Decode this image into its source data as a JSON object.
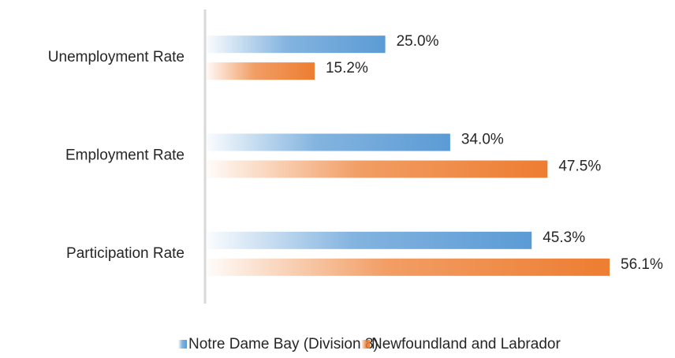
{
  "chart_data": {
    "type": "bar",
    "orientation": "horizontal",
    "categories": [
      "Unemployment Rate",
      "Employment Rate",
      "Participation Rate"
    ],
    "series": [
      {
        "name": "Notre Dame Bay (Division 8)",
        "color": "#5b9bd5",
        "values": [
          25.0,
          34.0,
          45.3
        ],
        "value_labels": [
          "25.0%",
          "34.0%",
          "45.3%"
        ]
      },
      {
        "name": "Newfoundland and Labrador",
        "color": "#ed7d31",
        "values": [
          15.2,
          47.5,
          56.1
        ],
        "value_labels": [
          "15.2%",
          "47.5%",
          "56.1%"
        ]
      }
    ],
    "legend": "bottom"
  }
}
